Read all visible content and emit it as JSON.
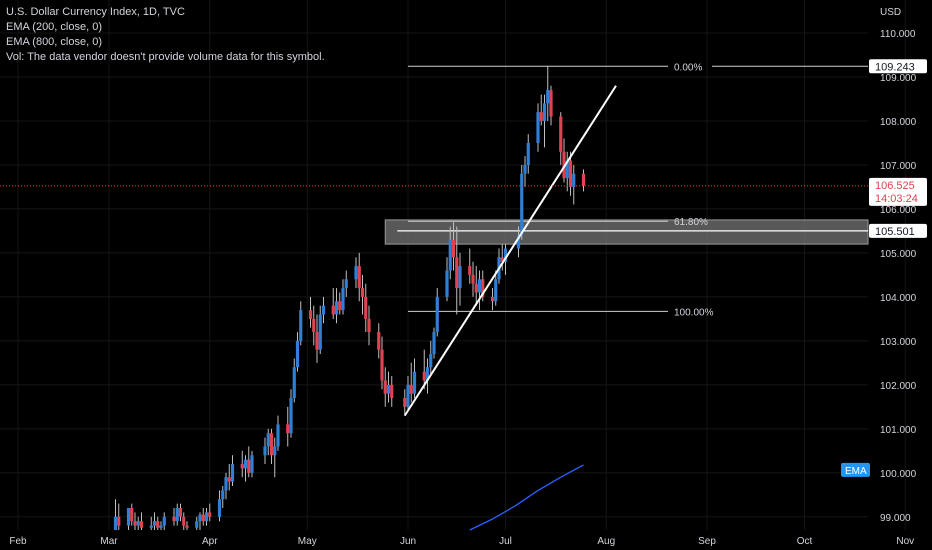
{
  "legend": {
    "title": "U.S. Dollar Currency Index, 1D, TVC",
    "ema200": "EMA (200, close, 0)",
    "ema800": "EMA (800, close, 0)",
    "volume": "Vol: The data vendor doesn't provide volume data for this symbol."
  },
  "colors": {
    "background": "#000000",
    "up": "#2f7fd6",
    "down": "#e0424f",
    "grid": "#151515",
    "ema": "#2962ff",
    "price_line": "#e0424f",
    "text": "#d1d4dc",
    "zone": "#7a7a7a"
  },
  "chart_data": {
    "type": "candlestick",
    "symbol": "U.S. Dollar Currency Index",
    "timeframe": "1D",
    "axis_label": "USD",
    "ylim": [
      98.7,
      110.75
    ],
    "y_ticks": [
      "99.000",
      "100.000",
      "101.000",
      "102.000",
      "103.000",
      "104.000",
      "105.000",
      "106.000",
      "107.000",
      "108.000",
      "109.000",
      "110.000"
    ],
    "x_ticks": [
      "Feb",
      "Mar",
      "Apr",
      "May",
      "Jun",
      "Jul",
      "Aug",
      "Sep",
      "Oct",
      "Nov"
    ],
    "candles": [
      {
        "date": "2022-03-03",
        "o": 98.7,
        "h": 99.4,
        "l": 98.7,
        "c": 99.0
      },
      {
        "date": "2022-03-04",
        "o": 99.0,
        "h": 99.3,
        "l": 98.7,
        "c": 98.8
      },
      {
        "date": "2022-03-07",
        "o": 98.8,
        "h": 99.2,
        "l": 98.7,
        "c": 99.2
      },
      {
        "date": "2022-03-08",
        "o": 99.2,
        "h": 99.3,
        "l": 98.8,
        "c": 98.9
      },
      {
        "date": "2022-03-09",
        "o": 98.9,
        "h": 99.1,
        "l": 98.7,
        "c": 98.8
      },
      {
        "date": "2022-03-10",
        "o": 98.8,
        "h": 99.0,
        "l": 98.7,
        "c": 98.9
      },
      {
        "date": "2022-03-11",
        "o": 98.9,
        "h": 99.1,
        "l": 98.7,
        "c": 98.75
      },
      {
        "date": "2022-03-14",
        "o": 98.75,
        "h": 99.0,
        "l": 98.7,
        "c": 98.8
      },
      {
        "date": "2022-03-15",
        "o": 98.8,
        "h": 99.1,
        "l": 98.7,
        "c": 98.9
      },
      {
        "date": "2022-03-16",
        "o": 98.9,
        "h": 99.0,
        "l": 98.7,
        "c": 98.75
      },
      {
        "date": "2022-03-17",
        "o": 98.75,
        "h": 98.9,
        "l": 98.7,
        "c": 98.8
      },
      {
        "date": "2022-03-18",
        "o": 98.8,
        "h": 99.1,
        "l": 98.7,
        "c": 99.0
      },
      {
        "date": "2022-03-21",
        "o": 99.0,
        "h": 99.2,
        "l": 98.8,
        "c": 98.9
      },
      {
        "date": "2022-03-22",
        "o": 98.9,
        "h": 99.3,
        "l": 98.8,
        "c": 99.2
      },
      {
        "date": "2022-03-23",
        "o": 99.2,
        "h": 99.3,
        "l": 98.9,
        "c": 99.0
      },
      {
        "date": "2022-03-24",
        "o": 99.0,
        "h": 99.1,
        "l": 98.7,
        "c": 98.8
      },
      {
        "date": "2022-03-25",
        "o": 98.8,
        "h": 98.9,
        "l": 98.7,
        "c": 98.75
      },
      {
        "date": "2022-03-28",
        "o": 98.75,
        "h": 99.0,
        "l": 98.7,
        "c": 98.9
      },
      {
        "date": "2022-03-29",
        "o": 98.9,
        "h": 99.1,
        "l": 98.7,
        "c": 99.05
      },
      {
        "date": "2022-03-30",
        "o": 99.05,
        "h": 99.2,
        "l": 98.8,
        "c": 98.9
      },
      {
        "date": "2022-03-31",
        "o": 98.9,
        "h": 99.2,
        "l": 98.8,
        "c": 99.1
      },
      {
        "date": "2022-04-01",
        "o": 99.1,
        "h": 99.3,
        "l": 98.9,
        "c": 99.0
      },
      {
        "date": "2022-04-04",
        "o": 99.0,
        "h": 99.6,
        "l": 98.9,
        "c": 99.4
      },
      {
        "date": "2022-04-05",
        "o": 99.4,
        "h": 99.7,
        "l": 99.2,
        "c": 99.6
      },
      {
        "date": "2022-04-06",
        "o": 99.6,
        "h": 100.0,
        "l": 99.4,
        "c": 99.9
      },
      {
        "date": "2022-04-07",
        "o": 99.9,
        "h": 100.2,
        "l": 99.6,
        "c": 99.8
      },
      {
        "date": "2022-04-08",
        "o": 99.8,
        "h": 100.4,
        "l": 99.7,
        "c": 100.2
      },
      {
        "date": "2022-04-11",
        "o": 100.2,
        "h": 100.5,
        "l": 99.9,
        "c": 100.1
      },
      {
        "date": "2022-04-12",
        "o": 100.1,
        "h": 100.4,
        "l": 99.8,
        "c": 100.3
      },
      {
        "date": "2022-04-13",
        "o": 100.3,
        "h": 100.6,
        "l": 99.9,
        "c": 100.0
      },
      {
        "date": "2022-04-14",
        "o": 100.0,
        "h": 100.5,
        "l": 99.9,
        "c": 100.4
      },
      {
        "date": "2022-04-18",
        "o": 100.4,
        "h": 100.8,
        "l": 100.2,
        "c": 100.6
      },
      {
        "date": "2022-04-19",
        "o": 100.6,
        "h": 101.0,
        "l": 100.4,
        "c": 100.9
      },
      {
        "date": "2022-04-20",
        "o": 100.9,
        "h": 101.0,
        "l": 100.2,
        "c": 100.4
      },
      {
        "date": "2022-04-21",
        "o": 100.4,
        "h": 100.8,
        "l": 99.9,
        "c": 100.6
      },
      {
        "date": "2022-04-22",
        "o": 100.6,
        "h": 101.3,
        "l": 100.5,
        "c": 101.1
      },
      {
        "date": "2022-04-25",
        "o": 101.1,
        "h": 101.5,
        "l": 100.6,
        "c": 100.9
      },
      {
        "date": "2022-04-26",
        "o": 100.9,
        "h": 101.9,
        "l": 100.8,
        "c": 101.7
      },
      {
        "date": "2022-04-27",
        "o": 101.7,
        "h": 102.6,
        "l": 101.6,
        "c": 102.4
      },
      {
        "date": "2022-04-28",
        "o": 102.4,
        "h": 103.2,
        "l": 102.3,
        "c": 103.0
      },
      {
        "date": "2022-04-29",
        "o": 103.0,
        "h": 103.9,
        "l": 102.9,
        "c": 103.7
      },
      {
        "date": "2022-05-02",
        "o": 103.7,
        "h": 104.0,
        "l": 103.3,
        "c": 103.5
      },
      {
        "date": "2022-05-03",
        "o": 103.5,
        "h": 103.8,
        "l": 102.9,
        "c": 103.2
      },
      {
        "date": "2022-05-04",
        "o": 103.2,
        "h": 103.6,
        "l": 102.5,
        "c": 102.8
      },
      {
        "date": "2022-05-05",
        "o": 102.8,
        "h": 103.8,
        "l": 102.7,
        "c": 103.6
      },
      {
        "date": "2022-05-06",
        "o": 103.6,
        "h": 104.0,
        "l": 103.4,
        "c": 103.8
      },
      {
        "date": "2022-05-09",
        "o": 103.8,
        "h": 104.2,
        "l": 103.5,
        "c": 103.6
      },
      {
        "date": "2022-05-10",
        "o": 103.6,
        "h": 104.2,
        "l": 103.4,
        "c": 103.9
      },
      {
        "date": "2022-05-11",
        "o": 103.9,
        "h": 104.1,
        "l": 103.6,
        "c": 103.7
      },
      {
        "date": "2022-05-12",
        "o": 103.7,
        "h": 104.4,
        "l": 103.6,
        "c": 104.2
      },
      {
        "date": "2022-05-13",
        "o": 104.2,
        "h": 104.6,
        "l": 104.0,
        "c": 104.4
      },
      {
        "date": "2022-05-16",
        "o": 104.4,
        "h": 104.9,
        "l": 104.2,
        "c": 104.7
      },
      {
        "date": "2022-05-17",
        "o": 104.7,
        "h": 105.0,
        "l": 103.9,
        "c": 104.2
      },
      {
        "date": "2022-05-18",
        "o": 104.2,
        "h": 104.5,
        "l": 103.6,
        "c": 104.0
      },
      {
        "date": "2022-05-19",
        "o": 104.0,
        "h": 104.3,
        "l": 103.2,
        "c": 103.5
      },
      {
        "date": "2022-05-20",
        "o": 103.5,
        "h": 103.8,
        "l": 102.9,
        "c": 103.2
      },
      {
        "date": "2022-05-23",
        "o": 103.2,
        "h": 103.4,
        "l": 102.6,
        "c": 102.8
      },
      {
        "date": "2022-05-24",
        "o": 102.8,
        "h": 103.1,
        "l": 101.9,
        "c": 102.1
      },
      {
        "date": "2022-05-25",
        "o": 102.1,
        "h": 102.4,
        "l": 101.5,
        "c": 101.8
      },
      {
        "date": "2022-05-26",
        "o": 101.8,
        "h": 102.3,
        "l": 101.6,
        "c": 102.0
      },
      {
        "date": "2022-05-27",
        "o": 102.0,
        "h": 102.2,
        "l": 101.5,
        "c": 101.7
      },
      {
        "date": "2022-05-31",
        "o": 101.7,
        "h": 101.9,
        "l": 101.3,
        "c": 101.5
      },
      {
        "date": "2022-06-01",
        "o": 101.5,
        "h": 102.2,
        "l": 101.4,
        "c": 102.0
      },
      {
        "date": "2022-06-02",
        "o": 102.0,
        "h": 102.5,
        "l": 101.6,
        "c": 101.8
      },
      {
        "date": "2022-06-03",
        "o": 101.8,
        "h": 102.6,
        "l": 101.7,
        "c": 102.3
      },
      {
        "date": "2022-06-06",
        "o": 102.3,
        "h": 102.8,
        "l": 101.9,
        "c": 102.1
      },
      {
        "date": "2022-06-07",
        "o": 102.1,
        "h": 102.6,
        "l": 101.8,
        "c": 102.4
      },
      {
        "date": "2022-06-08",
        "o": 102.4,
        "h": 103.0,
        "l": 102.2,
        "c": 102.7
      },
      {
        "date": "2022-06-09",
        "o": 102.7,
        "h": 103.3,
        "l": 102.6,
        "c": 103.2
      },
      {
        "date": "2022-06-10",
        "o": 103.2,
        "h": 104.2,
        "l": 103.1,
        "c": 104.0
      },
      {
        "date": "2022-06-13",
        "o": 104.0,
        "h": 104.9,
        "l": 103.9,
        "c": 104.6
      },
      {
        "date": "2022-06-14",
        "o": 104.6,
        "h": 105.6,
        "l": 104.4,
        "c": 105.3
      },
      {
        "date": "2022-06-15",
        "o": 105.3,
        "h": 105.7,
        "l": 104.6,
        "c": 104.9
      },
      {
        "date": "2022-06-16",
        "o": 104.9,
        "h": 105.6,
        "l": 103.6,
        "c": 104.2
      },
      {
        "date": "2022-06-17",
        "o": 104.2,
        "h": 105.0,
        "l": 103.8,
        "c": 104.7
      },
      {
        "date": "2022-06-20",
        "o": 104.7,
        "h": 105.1,
        "l": 104.3,
        "c": 104.5
      },
      {
        "date": "2022-06-21",
        "o": 104.5,
        "h": 104.8,
        "l": 104.0,
        "c": 104.3
      },
      {
        "date": "2022-06-22",
        "o": 104.3,
        "h": 104.7,
        "l": 103.8,
        "c": 104.1
      },
      {
        "date": "2022-06-23",
        "o": 104.1,
        "h": 104.6,
        "l": 103.7,
        "c": 104.4
      },
      {
        "date": "2022-06-24",
        "o": 104.4,
        "h": 104.6,
        "l": 103.9,
        "c": 104.0
      },
      {
        "date": "2022-06-27",
        "o": 104.0,
        "h": 104.2,
        "l": 103.7,
        "c": 103.9
      },
      {
        "date": "2022-06-28",
        "o": 103.9,
        "h": 104.6,
        "l": 103.8,
        "c": 104.4
      },
      {
        "date": "2022-06-29",
        "o": 104.4,
        "h": 105.1,
        "l": 104.3,
        "c": 104.9
      },
      {
        "date": "2022-06-30",
        "o": 104.9,
        "h": 105.2,
        "l": 104.6,
        "c": 104.8
      },
      {
        "date": "2022-07-01",
        "o": 104.8,
        "h": 105.2,
        "l": 104.5,
        "c": 105.1
      },
      {
        "date": "2022-07-05",
        "o": 105.1,
        "h": 105.6,
        "l": 104.9,
        "c": 105.4
      },
      {
        "date": "2022-07-06",
        "o": 105.4,
        "h": 107.0,
        "l": 105.3,
        "c": 106.8
      },
      {
        "date": "2022-07-07",
        "o": 106.8,
        "h": 107.2,
        "l": 106.5,
        "c": 107.0
      },
      {
        "date": "2022-07-08",
        "o": 107.0,
        "h": 107.7,
        "l": 106.8,
        "c": 107.5
      },
      {
        "date": "2022-07-11",
        "o": 107.5,
        "h": 108.4,
        "l": 107.3,
        "c": 108.2
      },
      {
        "date": "2022-07-12",
        "o": 108.2,
        "h": 108.6,
        "l": 107.9,
        "c": 108.0
      },
      {
        "date": "2022-07-13",
        "o": 108.0,
        "h": 108.6,
        "l": 107.4,
        "c": 108.4
      },
      {
        "date": "2022-07-14",
        "o": 108.4,
        "h": 109.243,
        "l": 108.0,
        "c": 108.7
      },
      {
        "date": "2022-07-15",
        "o": 108.7,
        "h": 108.8,
        "l": 107.9,
        "c": 108.1
      },
      {
        "date": "2022-07-18",
        "o": 108.1,
        "h": 108.2,
        "l": 107.0,
        "c": 107.3
      },
      {
        "date": "2022-07-19",
        "o": 107.3,
        "h": 107.6,
        "l": 106.6,
        "c": 106.7
      },
      {
        "date": "2022-07-20",
        "o": 106.7,
        "h": 107.3,
        "l": 106.4,
        "c": 107.1
      },
      {
        "date": "2022-07-21",
        "o": 107.1,
        "h": 107.3,
        "l": 106.3,
        "c": 106.5
      },
      {
        "date": "2022-07-22",
        "o": 106.5,
        "h": 107.0,
        "l": 106.1,
        "c": 106.8
      },
      {
        "date": "2022-07-25",
        "o": 106.8,
        "h": 106.9,
        "l": 106.4,
        "c": 106.525
      }
    ],
    "ema": [
      {
        "date": "2022-06-20",
        "v": 98.7
      },
      {
        "date": "2022-06-27",
        "v": 98.95
      },
      {
        "date": "2022-07-04",
        "v": 99.25
      },
      {
        "date": "2022-07-11",
        "v": 99.6
      },
      {
        "date": "2022-07-18",
        "v": 99.9
      },
      {
        "date": "2022-07-25",
        "v": 100.18
      }
    ],
    "trendline": [
      {
        "date": "2022-05-31",
        "v": 101.3
      },
      {
        "date": "2022-08-04",
        "v": 108.8
      }
    ],
    "fib_levels": [
      {
        "label": "0.00%",
        "value": 109.243
      },
      {
        "label": "61.80%",
        "value": 105.72
      },
      {
        "label": "100.00%",
        "value": 103.67
      }
    ],
    "fib_start": "2022-06-01",
    "fib_end": "2022-08-20",
    "zone": {
      "low": 105.2,
      "high": 105.75,
      "start": "2022-05-25",
      "line_value": 105.501
    },
    "price_labels": [
      {
        "value": 109.243,
        "text": "109.243",
        "style": "light"
      },
      {
        "value": 106.525,
        "text": "106.525",
        "time": "14:03:24",
        "style": "red"
      },
      {
        "value": 105.501,
        "text": "105.501",
        "style": "light"
      }
    ],
    "current_price": 106.525,
    "ema_badge": "EMA",
    "ema_badge_value": 100.0
  }
}
